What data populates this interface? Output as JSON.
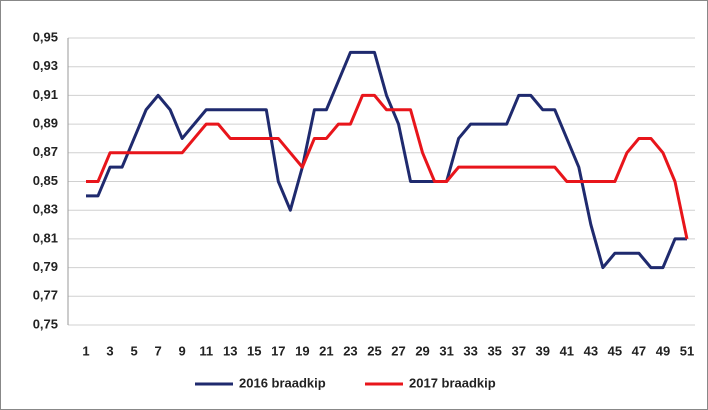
{
  "chart_data": {
    "type": "line",
    "categories": [
      1,
      null,
      3,
      null,
      5,
      null,
      7,
      null,
      9,
      null,
      11,
      null,
      13,
      null,
      15,
      null,
      17,
      null,
      19,
      null,
      21,
      null,
      23,
      null,
      25,
      null,
      27,
      null,
      29,
      null,
      31,
      null,
      33,
      null,
      35,
      null,
      37,
      null,
      39,
      null,
      41,
      null,
      43,
      null,
      45,
      null,
      47,
      null,
      49,
      null,
      51
    ],
    "series": [
      {
        "name": "2016 braadkip",
        "color": "#1f2a6e",
        "values": [
          0.84,
          0.84,
          0.86,
          0.86,
          0.88,
          0.9,
          0.91,
          0.9,
          0.88,
          0.89,
          0.9,
          0.9,
          0.9,
          0.9,
          0.9,
          0.9,
          0.85,
          0.83,
          0.86,
          0.9,
          0.9,
          0.92,
          0.94,
          0.94,
          0.94,
          0.91,
          0.89,
          0.85,
          0.85,
          0.85,
          0.85,
          0.88,
          0.89,
          0.89,
          0.89,
          0.89,
          0.91,
          0.91,
          0.9,
          0.9,
          0.88,
          0.86,
          0.82,
          0.79,
          0.8,
          0.8,
          0.8,
          0.79,
          0.79,
          0.81,
          0.81
        ]
      },
      {
        "name": "2017 braadkip",
        "color": "#e8151b",
        "values": [
          0.85,
          0.85,
          0.87,
          0.87,
          0.87,
          0.87,
          0.87,
          0.87,
          0.87,
          0.88,
          0.89,
          0.89,
          0.88,
          0.88,
          0.88,
          0.88,
          0.88,
          0.87,
          0.86,
          0.88,
          0.88,
          0.89,
          0.89,
          0.91,
          0.91,
          0.9,
          0.9,
          0.9,
          0.87,
          0.85,
          0.85,
          0.86,
          0.86,
          0.86,
          0.86,
          0.86,
          0.86,
          0.86,
          0.86,
          0.86,
          0.85,
          0.85,
          0.85,
          0.85,
          0.85,
          0.87,
          0.88,
          0.88,
          0.87,
          0.85,
          0.81
        ]
      }
    ],
    "ylim": [
      0.75,
      0.95
    ],
    "yticks": [
      {
        "value": 0.75,
        "label": "0,75"
      },
      {
        "value": 0.77,
        "label": "0,77"
      },
      {
        "value": 0.79,
        "label": "0,79"
      },
      {
        "value": 0.81,
        "label": "0,81"
      },
      {
        "value": 0.83,
        "label": "0,83"
      },
      {
        "value": 0.85,
        "label": "0,85"
      },
      {
        "value": 0.87,
        "label": "0,87"
      },
      {
        "value": 0.89,
        "label": "0,89"
      },
      {
        "value": 0.91,
        "label": "0,91"
      },
      {
        "value": 0.93,
        "label": "0,93"
      },
      {
        "value": 0.95,
        "label": "0,95"
      }
    ],
    "grid": true,
    "legend": "bottom"
  }
}
